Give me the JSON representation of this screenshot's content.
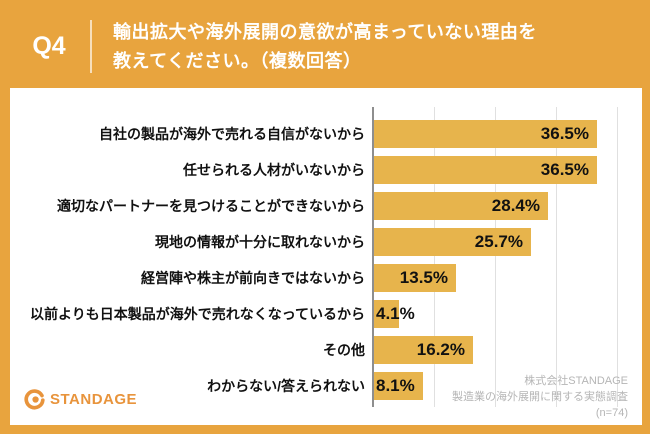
{
  "header": {
    "question_number": "Q4",
    "title_line1": "輸出拡大や海外展開の意欲が高まっていない理由を",
    "title_line2": "教えてください。（複数回答）"
  },
  "chart_data": {
    "type": "bar",
    "orientation": "horizontal",
    "categories": [
      "自社の製品が海外で売れる自信がないから",
      "任せられる人材がいないから",
      "適切なパートナーを見つけることができないから",
      "現地の情報が十分に取れないから",
      "経営陣や株主が前向きではないから",
      "以前よりも日本製品が海外で売れなくなっているから",
      "その他",
      "わからない/答えられない"
    ],
    "values": [
      36.5,
      36.5,
      28.4,
      25.7,
      13.5,
      4.1,
      16.2,
      8.1
    ],
    "value_labels": [
      "36.5%",
      "36.5%",
      "28.4%",
      "25.7%",
      "13.5%",
      "4.1%",
      "16.2%",
      "8.1%"
    ],
    "xlim": [
      0,
      43.7
    ],
    "gridline_percents": [
      10,
      20,
      30,
      40
    ],
    "grid": true,
    "legend": false,
    "title": "輸出拡大や海外展開の意欲が高まっていない理由",
    "xlabel": "",
    "ylabel": ""
  },
  "footer": {
    "logo_text": "STANDAGE",
    "attribution_line1": "株式会社STANDAGE",
    "attribution_line2": "製造業の海外展開に関する実態調査",
    "attribution_line3": "(n=74)"
  },
  "colors": {
    "frame_orange": "#E8A43E",
    "bar_gold": "#E7B44C",
    "logo_orange": "#E8943C",
    "text_black": "#111111",
    "grid_gray": "#E0E0E0",
    "axis_gray": "#8E8E8E",
    "attribution_gray": "#B5B5B5",
    "title_white": "#FFFFFF"
  }
}
